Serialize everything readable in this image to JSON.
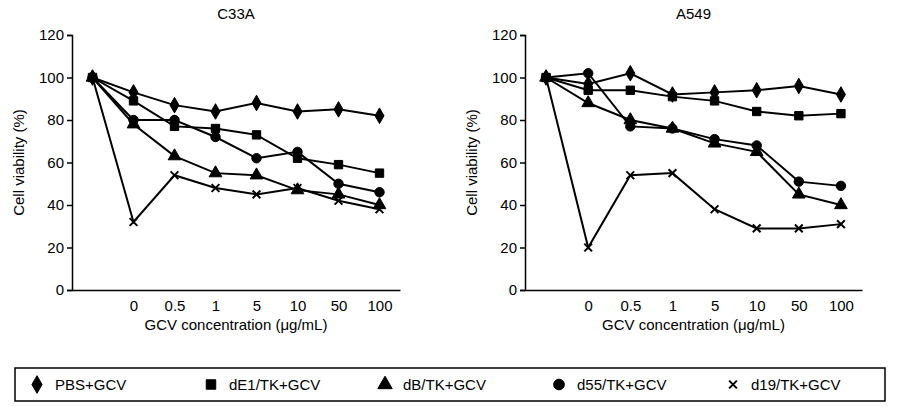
{
  "chart_data": [
    {
      "type": "line",
      "title": "C33A",
      "x_label": "GCV concentration (μg/mL)",
      "y_label": "Cell viability (%)",
      "categories": [
        null,
        "0",
        "0.5",
        "1",
        "5",
        "10",
        "50",
        "100"
      ],
      "ylim": [
        0,
        120
      ],
      "yticks": [
        0,
        20,
        40,
        60,
        80,
        100,
        120
      ],
      "legend": "bottom",
      "series": [
        {
          "name": "PBS+GCV",
          "color": "#000000",
          "marker": "diamond",
          "values": [
            100,
            93,
            87,
            84,
            88,
            84,
            85,
            82
          ]
        },
        {
          "name": "dE1/TK+GCV",
          "color": "#000000",
          "marker": "square",
          "values": [
            100,
            89,
            77,
            76,
            73,
            62,
            59,
            55
          ]
        },
        {
          "name": "dB/TK+GCV",
          "color": "#000000",
          "marker": "triangle",
          "values": [
            100,
            78,
            63,
            55,
            54,
            47,
            45,
            40
          ]
        },
        {
          "name": "d55/TK+GCV",
          "color": "#000000",
          "marker": "circle",
          "values": [
            100,
            80,
            80,
            72,
            62,
            65,
            50,
            46
          ]
        },
        {
          "name": "d19/TK+GCV",
          "color": "#000000",
          "marker": "x",
          "values": [
            100,
            32,
            54,
            48,
            45,
            48,
            42,
            38
          ]
        }
      ]
    },
    {
      "type": "line",
      "title": "A549",
      "x_label": "GCV concentration (μg/mL)",
      "y_label": "Cell viability (%)",
      "categories": [
        null,
        "0",
        "0.5",
        "1",
        "5",
        "10",
        "50",
        "100"
      ],
      "ylim": [
        0,
        120
      ],
      "yticks": [
        0,
        20,
        40,
        60,
        80,
        100,
        120
      ],
      "series": [
        {
          "name": "PBS+GCV",
          "color": "#000000",
          "marker": "diamond",
          "values": [
            100,
            97,
            102,
            92,
            93,
            94,
            96,
            92
          ]
        },
        {
          "name": "dE1/TK+GCV",
          "color": "#000000",
          "marker": "square",
          "values": [
            100,
            94,
            94,
            91,
            89,
            84,
            82,
            83
          ]
        },
        {
          "name": "dB/TK+GCV",
          "color": "#000000",
          "marker": "triangle",
          "values": [
            100,
            88,
            80,
            76,
            69,
            65,
            45,
            40
          ]
        },
        {
          "name": "d55/TK+GCV",
          "color": "#000000",
          "marker": "circle",
          "values": [
            100,
            102,
            77,
            76,
            71,
            68,
            51,
            49
          ]
        },
        {
          "name": "d19/TK+GCV",
          "color": "#000000",
          "marker": "x",
          "values": [
            100,
            20,
            54,
            55,
            38,
            29,
            29,
            31
          ]
        }
      ]
    }
  ]
}
